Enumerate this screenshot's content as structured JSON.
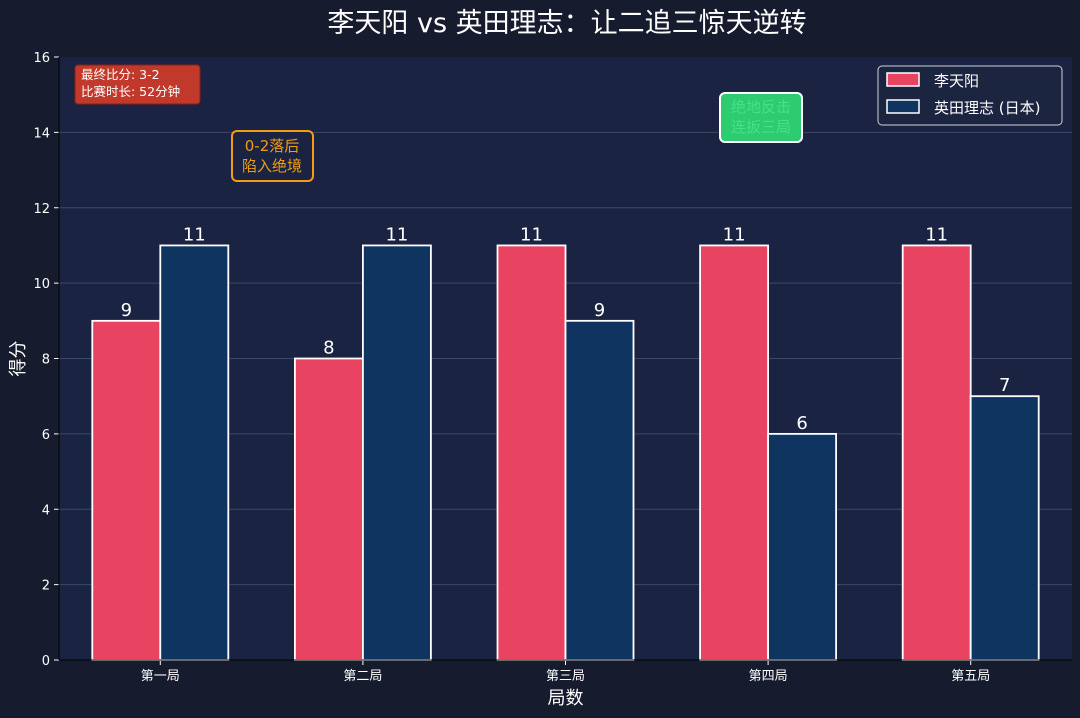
{
  "chart_data": {
    "type": "bar",
    "title": "李天阳 vs 英田理志：让二追三惊天逆转",
    "xlabel": "局数",
    "ylabel": "得分",
    "categories": [
      "第一局",
      "第二局",
      "第三局",
      "第四局",
      "第五局"
    ],
    "series": [
      {
        "name": "李天阳",
        "values": [
          9,
          8,
          11,
          11,
          11
        ],
        "color": "#e84462"
      },
      {
        "name": "英田理志 (日本)",
        "values": [
          11,
          11,
          9,
          6,
          7
        ],
        "color": "#0f3460"
      }
    ],
    "ylim": [
      0,
      16
    ],
    "yticks": [
      0,
      2,
      4,
      6,
      8,
      10,
      12,
      14,
      16
    ],
    "grid": "horizontal",
    "legend_position": "top-right",
    "annotations": {
      "summary": {
        "lines": [
          "最终比分: 3-2",
          "比赛时长: 52分钟"
        ],
        "color": "#c0392b"
      },
      "behind": {
        "lines": [
          "0-2落后",
          "陷入绝境"
        ],
        "color": "#f39c12"
      },
      "comeback": {
        "lines": [
          "绝地反击",
          "连扳三局"
        ],
        "color": "#2ecc71"
      }
    }
  }
}
